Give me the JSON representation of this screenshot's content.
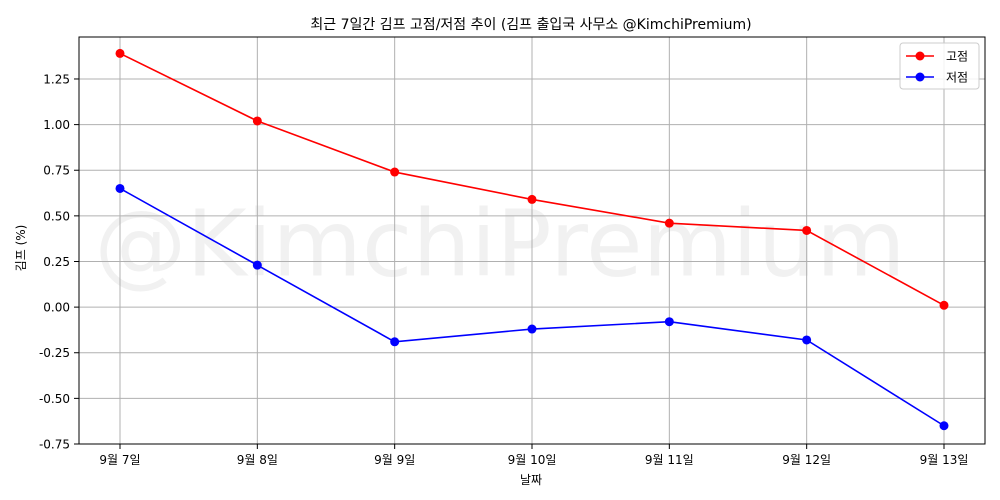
{
  "chart_data": {
    "type": "line",
    "title": "최근 7일간 김프 고점/저점 추이 (김프 출입국 사무소 @KimchiPremium)",
    "xlabel": "날짜",
    "ylabel": "김프 (%)",
    "categories": [
      "9월 7일",
      "9월 8일",
      "9월 9일",
      "9월 10일",
      "9월 11일",
      "9월 12일",
      "9월 13일"
    ],
    "series": [
      {
        "name": "고점",
        "color": "#ff0000",
        "values": [
          1.39,
          1.02,
          0.74,
          0.59,
          0.46,
          0.42,
          0.01
        ]
      },
      {
        "name": "저점",
        "color": "#0000ff",
        "values": [
          0.65,
          0.23,
          -0.19,
          -0.12,
          -0.08,
          -0.18,
          -0.65
        ]
      }
    ],
    "ylim": [
      -0.75,
      1.48
    ],
    "yticks": [
      -0.75,
      -0.5,
      -0.25,
      0.0,
      0.25,
      0.5,
      0.75,
      1.0,
      1.25
    ],
    "ytick_labels": [
      "-0.75",
      "-0.50",
      "-0.25",
      "0.00",
      "0.25",
      "0.50",
      "0.75",
      "1.00",
      "1.25"
    ],
    "grid": true,
    "legend_position": "top-right",
    "watermark": "@KimchiPremium"
  }
}
